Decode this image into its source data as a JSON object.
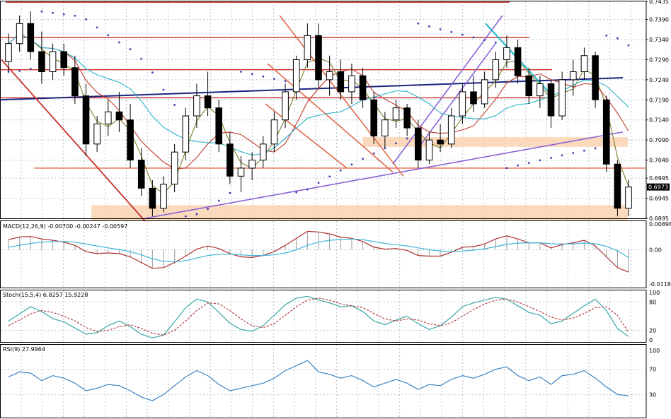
{
  "colors": {
    "bull_candle": "#ffffff",
    "bear_candle": "#000000",
    "sma_fast": "#7f7f2a",
    "sma_mid": "#c0392b",
    "sma_slow": "#2bb3c8",
    "sar": "#3a3ab5",
    "red_lines": "#c8302a",
    "channel": "#e06a4a",
    "purple_lines": "#8a62d8",
    "navy_line": "#1a237e",
    "cyan_line": "#18b6c6",
    "support_zone": "#fbd5b5",
    "macd_line": "#b03030",
    "signal_line": "#3db6d6",
    "stoch_main": "#3aa8a8",
    "stoch_signal": "#b03030",
    "rsi_line": "#3c84c4",
    "grid": "#b8c4d0",
    "price_tag_bg": "#000000",
    "price_tag_text": "#ffffff"
  },
  "price_tag": "0.6973",
  "chart_data": [
    {
      "type": "candlestick",
      "ylim": [
        0.6895,
        0.7435
      ],
      "yticks": [
        "0.7435",
        "0.7390",
        "0.7340",
        "0.7290",
        "0.7240",
        "0.7190",
        "0.7140",
        "0.7090",
        "0.7040",
        "0.6995",
        "0.6945",
        "0.6895"
      ],
      "horizontal_levels": [
        0.7433,
        0.7345,
        0.7265,
        0.7195,
        0.702
      ],
      "support_zones": [
        [
          0.689,
          0.6928
        ],
        [
          0.7073,
          0.7097
        ]
      ],
      "candles": [
        [
          0.7285,
          0.7355,
          0.726,
          0.733
        ],
        [
          0.733,
          0.74,
          0.731,
          0.738
        ],
        [
          0.738,
          0.741,
          0.729,
          0.731
        ],
        [
          0.731,
          0.736,
          0.723,
          0.726
        ],
        [
          0.726,
          0.733,
          0.724,
          0.731
        ],
        [
          0.731,
          0.733,
          0.725,
          0.727
        ],
        [
          0.727,
          0.73,
          0.718,
          0.72
        ],
        [
          0.72,
          0.723,
          0.705,
          0.708
        ],
        [
          0.708,
          0.715,
          0.706,
          0.713
        ],
        [
          0.713,
          0.719,
          0.71,
          0.716
        ],
        [
          0.716,
          0.721,
          0.711,
          0.714
        ],
        [
          0.714,
          0.718,
          0.702,
          0.704
        ],
        [
          0.704,
          0.707,
          0.695,
          0.697
        ],
        [
          0.697,
          0.699,
          0.69,
          0.692
        ],
        [
          0.692,
          0.7,
          0.691,
          0.698
        ],
        [
          0.698,
          0.708,
          0.696,
          0.706
        ],
        [
          0.706,
          0.717,
          0.704,
          0.715
        ],
        [
          0.715,
          0.723,
          0.712,
          0.72
        ],
        [
          0.72,
          0.726,
          0.715,
          0.717
        ],
        [
          0.717,
          0.719,
          0.706,
          0.708
        ],
        [
          0.708,
          0.711,
          0.698,
          0.7
        ],
        [
          0.7,
          0.705,
          0.696,
          0.702
        ],
        [
          0.702,
          0.706,
          0.699,
          0.704
        ],
        [
          0.704,
          0.71,
          0.702,
          0.708
        ],
        [
          0.708,
          0.716,
          0.706,
          0.714
        ],
        [
          0.714,
          0.723,
          0.712,
          0.721
        ],
        [
          0.721,
          0.73,
          0.719,
          0.729
        ],
        [
          0.729,
          0.738,
          0.727,
          0.735
        ],
        [
          0.735,
          0.738,
          0.722,
          0.724
        ],
        [
          0.724,
          0.73,
          0.72,
          0.726
        ],
        [
          0.726,
          0.729,
          0.719,
          0.721
        ],
        [
          0.721,
          0.728,
          0.718,
          0.725
        ],
        [
          0.725,
          0.727,
          0.717,
          0.719
        ],
        [
          0.719,
          0.721,
          0.708,
          0.71
        ],
        [
          0.71,
          0.716,
          0.707,
          0.714
        ],
        [
          0.714,
          0.719,
          0.712,
          0.717
        ],
        [
          0.717,
          0.718,
          0.71,
          0.712
        ],
        [
          0.712,
          0.714,
          0.702,
          0.704
        ],
        [
          0.704,
          0.711,
          0.703,
          0.709
        ],
        [
          0.709,
          0.713,
          0.706,
          0.708
        ],
        [
          0.708,
          0.717,
          0.707,
          0.715
        ],
        [
          0.715,
          0.723,
          0.713,
          0.721
        ],
        [
          0.721,
          0.725,
          0.716,
          0.718
        ],
        [
          0.718,
          0.726,
          0.717,
          0.724
        ],
        [
          0.724,
          0.731,
          0.722,
          0.729
        ],
        [
          0.729,
          0.735,
          0.727,
          0.732
        ],
        [
          0.732,
          0.734,
          0.723,
          0.725
        ],
        [
          0.725,
          0.727,
          0.718,
          0.72
        ],
        [
          0.72,
          0.725,
          0.717,
          0.723
        ],
        [
          0.723,
          0.724,
          0.712,
          0.715
        ],
        [
          0.715,
          0.726,
          0.714,
          0.724
        ],
        [
          0.724,
          0.729,
          0.72,
          0.726
        ],
        [
          0.726,
          0.732,
          0.724,
          0.73
        ],
        [
          0.73,
          0.731,
          0.717,
          0.719
        ],
        [
          0.719,
          0.72,
          0.701,
          0.703
        ],
        [
          0.703,
          0.704,
          0.69,
          0.692
        ],
        [
          0.692,
          0.699,
          0.69,
          0.6973
        ]
      ],
      "macd": {
        "label": "MACD(12,26,9) -0.00700 -0.00247 -0.00597",
        "ylim": [
          -0.01185,
          0.00898
        ],
        "yticks": [
          "0.00898",
          "0.00",
          "-0.01185"
        ],
        "histogram": [
          0.0032,
          0.004,
          0.0042,
          0.0034,
          0.003,
          0.0024,
          0.0014,
          -0.0006,
          -0.0012,
          -0.001,
          -0.0012,
          -0.0022,
          -0.004,
          -0.0058,
          -0.0056,
          -0.004,
          -0.002,
          0.0002,
          0.0012,
          0.0004,
          -0.0012,
          -0.0022,
          -0.0024,
          -0.0018,
          -0.0006,
          0.0014,
          0.0036,
          0.0058,
          0.0056,
          0.005,
          0.004,
          0.0036,
          0.0026,
          0.0008,
          0.0002,
          0.0004,
          -0.0002,
          -0.0018,
          -0.002,
          -0.002,
          -0.0008,
          0.0008,
          0.001,
          0.0018,
          0.0034,
          0.0044,
          0.0034,
          0.0022,
          0.0022,
          0.0006,
          0.0016,
          0.0022,
          0.003,
          0.0012,
          -0.0022,
          -0.0056,
          -0.007
        ],
        "signal": [
          0.0008,
          0.0014,
          0.002,
          0.0024,
          0.0026,
          0.0026,
          0.0024,
          0.0018,
          0.0012,
          0.0006,
          0.0001,
          -0.0006,
          -0.0016,
          -0.0028,
          -0.0036,
          -0.0038,
          -0.0034,
          -0.0026,
          -0.0018,
          -0.0014,
          -0.0014,
          -0.0016,
          -0.0018,
          -0.0018,
          -0.0016,
          -0.001,
          0.0,
          0.0014,
          0.0024,
          0.003,
          0.0032,
          0.0034,
          0.0032,
          0.0026,
          0.002,
          0.0016,
          0.0012,
          0.0006,
          0.0,
          -0.0004,
          -0.0006,
          -0.0004,
          -0.0001,
          0.0003,
          0.001,
          0.0017,
          0.0021,
          0.0022,
          0.0022,
          0.0019,
          0.0018,
          0.0019,
          0.0021,
          0.0019,
          0.0011,
          -0.0003,
          -0.0025
        ]
      },
      "stochastic": {
        "label": "Stoch(15,5,4) 6.8257 15.9228",
        "ylim": [
          0,
          100
        ],
        "yticks": [
          "100",
          "80",
          "20",
          "0"
        ],
        "main": [
          40,
          55,
          70,
          60,
          45,
          38,
          25,
          12,
          15,
          30,
          40,
          28,
          12,
          4,
          10,
          38,
          68,
          86,
          80,
          58,
          35,
          22,
          18,
          30,
          52,
          74,
          88,
          92,
          84,
          78,
          70,
          72,
          60,
          40,
          32,
          42,
          50,
          34,
          22,
          30,
          48,
          70,
          78,
          84,
          90,
          86,
          72,
          58,
          52,
          34,
          40,
          56,
          72,
          86,
          62,
          24,
          7
        ],
        "signal": [
          30,
          42,
          55,
          62,
          58,
          50,
          40,
          26,
          18,
          20,
          28,
          32,
          24,
          14,
          10,
          20,
          40,
          62,
          78,
          76,
          62,
          44,
          30,
          26,
          34,
          52,
          70,
          84,
          88,
          84,
          76,
          72,
          68,
          56,
          44,
          40,
          44,
          42,
          34,
          30,
          36,
          50,
          64,
          76,
          84,
          86,
          80,
          70,
          60,
          48,
          42,
          46,
          56,
          68,
          70,
          52,
          16
        ]
      },
      "rsi": {
        "label": "RSI(9) 27.9964",
        "ylim": [
          0,
          100
        ],
        "yticks": [
          "100",
          "70",
          "30"
        ],
        "values": [
          58,
          66,
          64,
          52,
          60,
          56,
          48,
          36,
          40,
          46,
          44,
          36,
          26,
          20,
          30,
          44,
          58,
          68,
          60,
          46,
          36,
          40,
          44,
          48,
          56,
          68,
          76,
          84,
          66,
          62,
          56,
          60,
          52,
          42,
          48,
          54,
          48,
          38,
          46,
          44,
          54,
          60,
          56,
          62,
          70,
          74,
          60,
          52,
          58,
          46,
          60,
          62,
          68,
          56,
          42,
          30,
          28
        ]
      }
    }
  ]
}
